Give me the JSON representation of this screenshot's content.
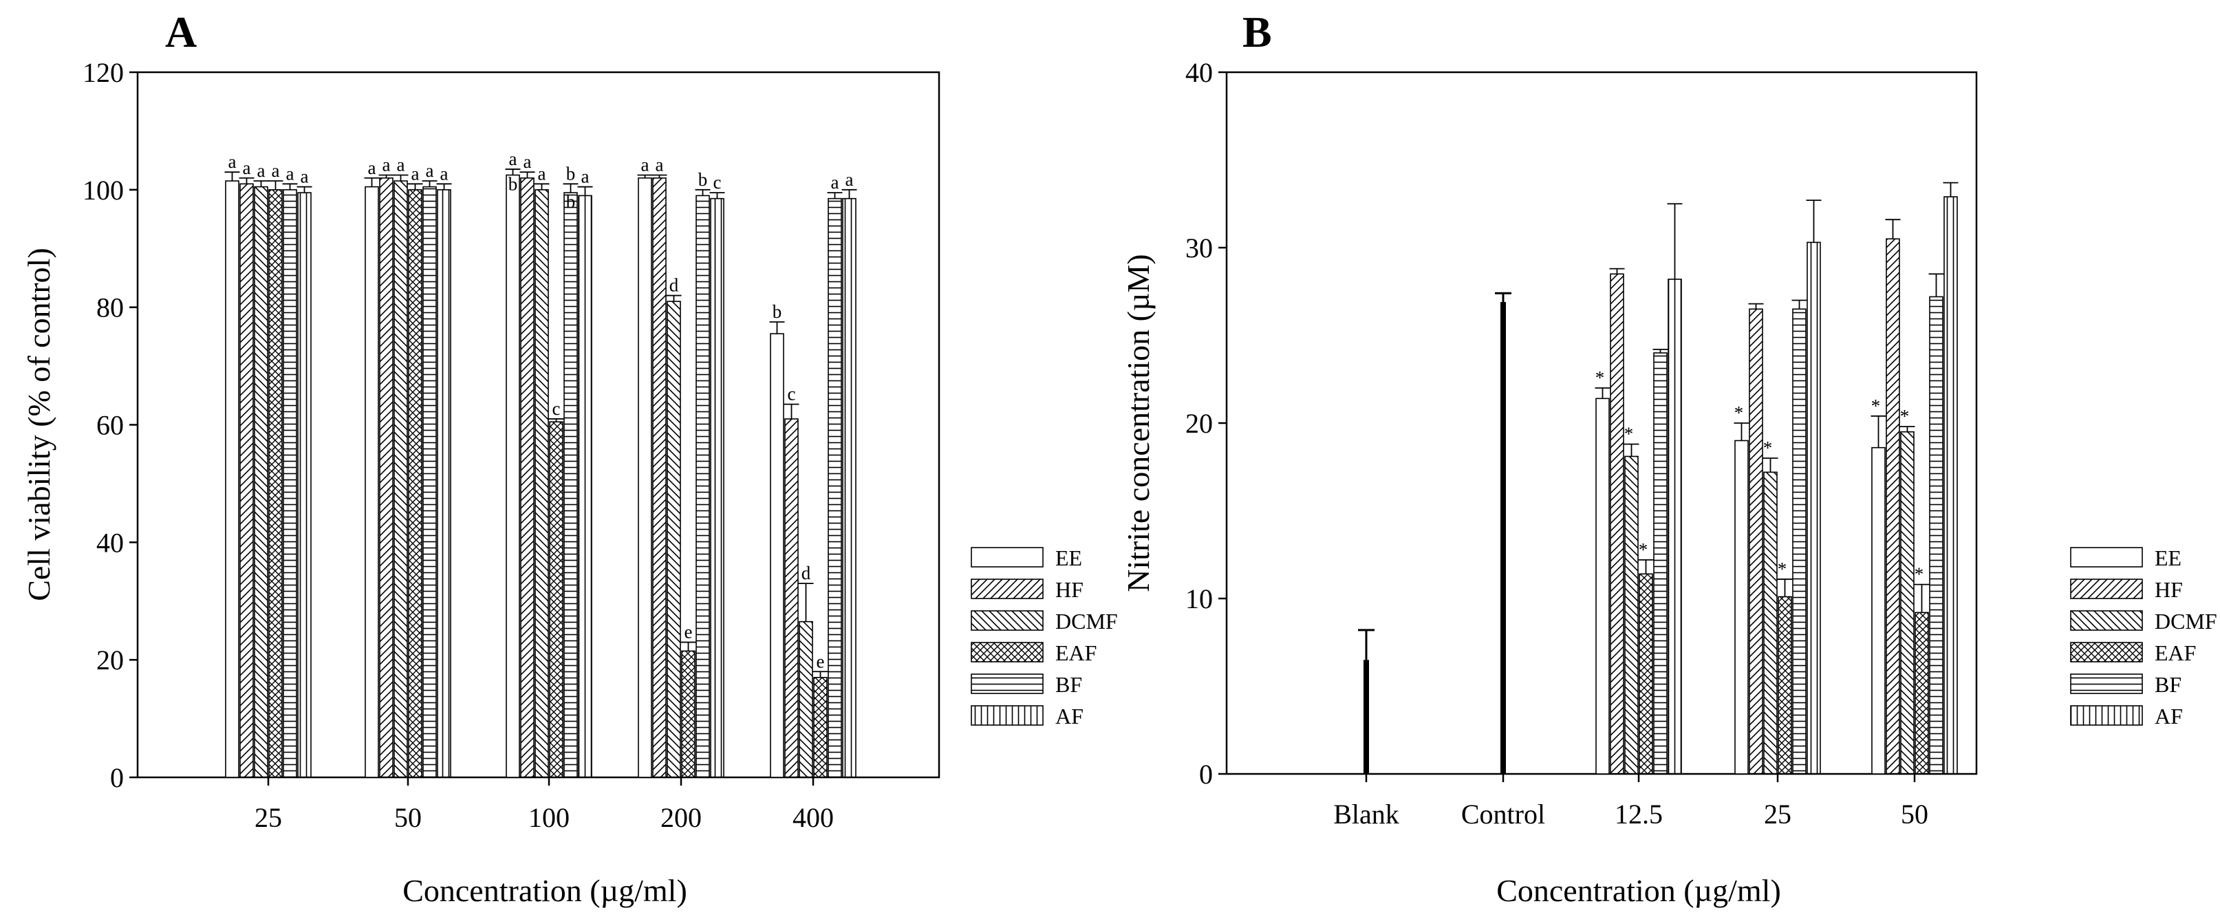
{
  "chart_data": [
    {
      "panel": "A",
      "type": "bar",
      "xlabel": "Concentration (µg/ml)",
      "ylabel": "Cell viability (% of control)",
      "ylim": [
        0,
        120
      ],
      "yticks": [
        0,
        20,
        40,
        60,
        80,
        100,
        120
      ],
      "categories": [
        "25",
        "50",
        "100",
        "200",
        "400"
      ],
      "legend_position": "right",
      "series": [
        {
          "name": "EE",
          "pattern": "empty",
          "values": [
            101.5,
            100.5,
            102.5,
            102.0,
            75.5
          ],
          "errors": [
            1.5,
            1.5,
            1.0,
            0.5,
            2.0
          ],
          "labels": [
            "a",
            "a",
            "a",
            "a",
            "b"
          ]
        },
        {
          "name": "HF",
          "pattern": "fdiag",
          "values": [
            101.0,
            102.0,
            102.0,
            102.0,
            61.0
          ],
          "errors": [
            1.0,
            0.5,
            1.0,
            0.5,
            2.5
          ],
          "labels": [
            "a",
            "a",
            "a",
            "a",
            "c"
          ]
        },
        {
          "name": "DCMF",
          "pattern": "bdiag",
          "values": [
            100.5,
            101.5,
            100.0,
            81.0,
            26.5
          ],
          "errors": [
            1.0,
            1.0,
            1.0,
            1.0,
            6.5
          ],
          "labels": [
            "a",
            "a",
            "a",
            "d",
            "d"
          ]
        },
        {
          "name": "EAF",
          "pattern": "cross",
          "values": [
            100.0,
            100.0,
            60.5,
            21.5,
            17.0
          ],
          "errors": [
            1.5,
            1.0,
            0.5,
            1.5,
            1.0
          ],
          "labels": [
            "a",
            "a",
            "c",
            "e",
            "e"
          ]
        },
        {
          "name": "BF",
          "pattern": "hlines",
          "values": [
            100.0,
            100.5,
            99.5,
            99.0,
            98.5
          ],
          "errors": [
            1.0,
            1.0,
            1.5,
            1.0,
            1.0
          ],
          "labels": [
            "a",
            "a",
            "b",
            "b",
            "a"
          ]
        },
        {
          "name": "AF",
          "pattern": "vlines",
          "values": [
            99.5,
            100.0,
            99.0,
            98.5,
            98.5
          ],
          "errors": [
            1.0,
            1.0,
            1.5,
            1.0,
            1.5
          ],
          "labels": [
            "a",
            "a",
            "a",
            "c",
            "a"
          ]
        }
      ],
      "extra_labels": [
        {
          "category": 2,
          "series": 0,
          "text": "b"
        },
        {
          "category": 2,
          "series": 4,
          "text": "b"
        }
      ]
    },
    {
      "panel": "B",
      "type": "bar",
      "xlabel": "Concentration (µg/ml)",
      "ylabel": "Nitrite concentration (µM)",
      "ylim": [
        0,
        40
      ],
      "yticks": [
        0,
        10,
        20,
        30,
        40
      ],
      "categories": [
        "Blank",
        "Control",
        "12.5",
        "25",
        "50"
      ],
      "legend_position": "right",
      "single_bars": [
        {
          "category": "Blank",
          "value": 6.5,
          "error": 1.7
        },
        {
          "category": "Control",
          "value": 26.9,
          "error": 0.5
        }
      ],
      "series": [
        {
          "name": "EE",
          "pattern": "empty",
          "values": [
            null,
            null,
            21.4,
            19.0,
            18.6
          ],
          "errors": [
            0,
            0,
            0.6,
            1.0,
            1.8
          ],
          "labels": [
            "",
            "",
            "*",
            "*",
            "*"
          ]
        },
        {
          "name": "HF",
          "pattern": "fdiag",
          "values": [
            null,
            null,
            28.5,
            26.5,
            30.5
          ],
          "errors": [
            0,
            0,
            0.3,
            0.3,
            1.1
          ],
          "labels": [
            "",
            "",
            "",
            "",
            ""
          ]
        },
        {
          "name": "DCMF",
          "pattern": "bdiag",
          "values": [
            null,
            null,
            18.1,
            17.2,
            19.5
          ],
          "errors": [
            0,
            0,
            0.7,
            0.8,
            0.3
          ],
          "labels": [
            "",
            "",
            "*",
            "*",
            "*"
          ]
        },
        {
          "name": "EAF",
          "pattern": "cross",
          "values": [
            null,
            null,
            11.4,
            10.1,
            9.2
          ],
          "errors": [
            0,
            0,
            0.8,
            1.0,
            1.6
          ],
          "labels": [
            "",
            "",
            "*",
            "*",
            "*"
          ]
        },
        {
          "name": "BF",
          "pattern": "hlines",
          "values": [
            null,
            null,
            24.0,
            26.5,
            27.2
          ],
          "errors": [
            0,
            0,
            0.2,
            0.5,
            1.3
          ],
          "labels": [
            "",
            "",
            "",
            "",
            ""
          ]
        },
        {
          "name": "AF",
          "pattern": "vlines",
          "values": [
            null,
            null,
            28.2,
            30.3,
            32.9
          ],
          "errors": [
            0,
            0,
            4.3,
            2.4,
            0.8
          ],
          "labels": [
            "",
            "",
            "",
            "",
            ""
          ]
        }
      ]
    }
  ]
}
